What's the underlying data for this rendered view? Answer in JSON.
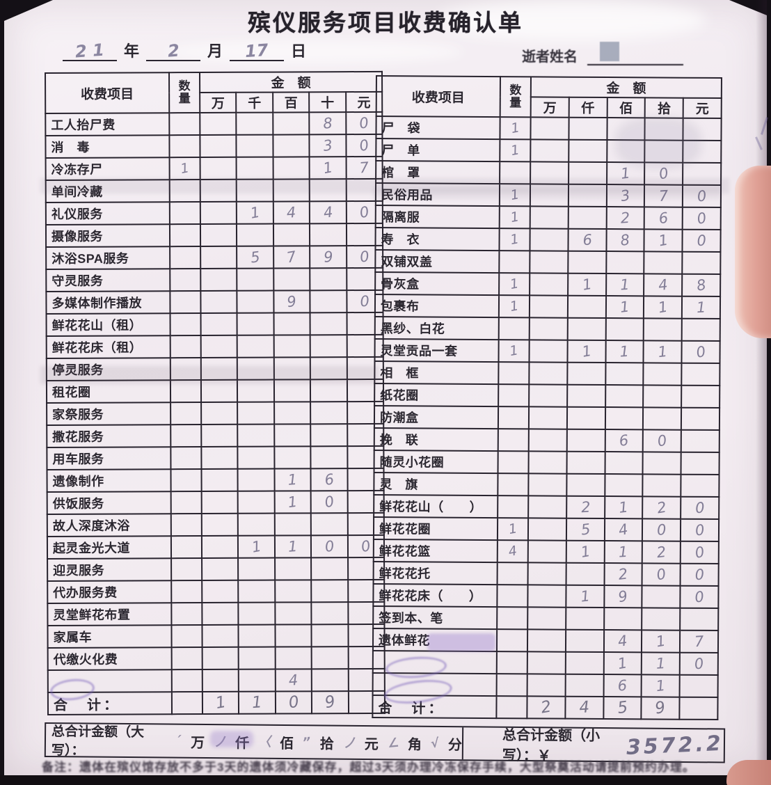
{
  "title": "殡仪服务项目收费确认单",
  "date_line": {
    "year_hw": "2 1",
    "year_label": "年",
    "month_hw": "2",
    "month_label": "月",
    "day_hw": "17",
    "day_label": "日"
  },
  "deceased_label": "逝者姓名",
  "left_table": {
    "header": {
      "item": "收费项目",
      "qty": "数量",
      "amount": "金　额",
      "units": [
        "万",
        "千",
        "百",
        "十",
        "元"
      ]
    },
    "rows": [
      {
        "item": "工人抬尸费",
        "qty": "",
        "a": [
          "",
          "",
          "",
          "8",
          "0"
        ]
      },
      {
        "item": "消　毒",
        "qty": "",
        "a": [
          "",
          "",
          "",
          "3",
          "0"
        ]
      },
      {
        "item": "冷冻存尸",
        "qty": "1",
        "a": [
          "",
          "",
          "",
          "1",
          "7"
        ]
      },
      {
        "item": "单间冷藏",
        "qty": "",
        "a": [
          "",
          "",
          "",
          "",
          ""
        ]
      },
      {
        "item": "礼仪服务",
        "qty": "",
        "a": [
          "",
          "1",
          "4",
          "4",
          "0"
        ]
      },
      {
        "item": "摄像服务",
        "qty": "",
        "a": [
          "",
          "",
          "",
          "",
          ""
        ]
      },
      {
        "item": "沐浴SPA服务",
        "qty": "",
        "a": [
          "",
          "5",
          "7",
          "9",
          "0"
        ]
      },
      {
        "item": "守灵服务",
        "qty": "",
        "a": [
          "",
          "",
          "",
          "",
          ""
        ]
      },
      {
        "item": "多媒体制作播放",
        "qty": "",
        "a": [
          "",
          "",
          "9",
          "",
          "0"
        ]
      },
      {
        "item": "鲜花花山（租）",
        "qty": "",
        "a": [
          "",
          "",
          "",
          "",
          ""
        ]
      },
      {
        "item": "鲜花花床（租）",
        "qty": "",
        "a": [
          "",
          "",
          "",
          "",
          ""
        ]
      },
      {
        "item": "停灵服务",
        "qty": "",
        "a": [
          "",
          "",
          "",
          "",
          ""
        ]
      },
      {
        "item": "租花圈",
        "qty": "",
        "a": [
          "",
          "",
          "",
          "",
          ""
        ]
      },
      {
        "item": "家祭服务",
        "qty": "",
        "a": [
          "",
          "",
          "",
          "",
          ""
        ]
      },
      {
        "item": "撒花服务",
        "qty": "",
        "a": [
          "",
          "",
          "",
          "",
          ""
        ]
      },
      {
        "item": "用车服务",
        "qty": "",
        "a": [
          "",
          "",
          "",
          "",
          ""
        ]
      },
      {
        "item": "遗像制作",
        "qty": "",
        "a": [
          "",
          "",
          "1",
          "6",
          ""
        ]
      },
      {
        "item": "供饭服务",
        "qty": "",
        "a": [
          "",
          "",
          "1",
          "0",
          ""
        ]
      },
      {
        "item": "故人深度沐浴",
        "qty": "",
        "a": [
          "",
          "",
          "",
          "",
          ""
        ]
      },
      {
        "item": "起灵金光大道",
        "qty": "",
        "a": [
          "",
          "1",
          "1",
          "0",
          "0"
        ]
      },
      {
        "item": "迎灵服务",
        "qty": "",
        "a": [
          "",
          "",
          "",
          "",
          ""
        ]
      },
      {
        "item": "代办服务费",
        "qty": "",
        "a": [
          "",
          "",
          "",
          "",
          ""
        ]
      },
      {
        "item": "灵堂鲜花布置",
        "qty": "",
        "a": [
          "",
          "",
          "",
          "",
          ""
        ]
      },
      {
        "item": "家属车",
        "qty": "",
        "a": [
          "",
          "",
          "",
          "",
          ""
        ]
      },
      {
        "item": "代缴火化费",
        "qty": "",
        "a": [
          "",
          "",
          "",
          "",
          ""
        ]
      },
      {
        "item": "",
        "qty": "",
        "a": [
          "",
          "",
          "4",
          "",
          ""
        ]
      },
      {
        "item": "合　计：",
        "qty": "",
        "a": [
          "1",
          "1",
          "0",
          "9",
          ""
        ],
        "total": true
      }
    ]
  },
  "right_table": {
    "header": {
      "item": "收费项目",
      "qty": "数量",
      "amount": "金　额",
      "units": [
        "万",
        "仟",
        "佰",
        "拾",
        "元"
      ]
    },
    "rows": [
      {
        "item": "尸　袋",
        "qty": "1",
        "a": [
          "",
          "",
          "",
          "",
          ""
        ]
      },
      {
        "item": "尸　单",
        "qty": "1",
        "a": [
          "",
          "",
          "",
          "",
          ""
        ]
      },
      {
        "item": "棺　罩",
        "qty": "",
        "a": [
          "",
          "",
          "1",
          "0",
          ""
        ]
      },
      {
        "item": "民俗用品",
        "qty": "1",
        "a": [
          "",
          "",
          "3",
          "7",
          "0"
        ]
      },
      {
        "item": "隔离服",
        "qty": "1",
        "a": [
          "",
          "",
          "2",
          "6",
          "0"
        ]
      },
      {
        "item": "寿　衣",
        "qty": "1",
        "a": [
          "",
          "6",
          "8",
          "1",
          "0"
        ]
      },
      {
        "item": "双铺双盖",
        "qty": "",
        "a": [
          "",
          "",
          "",
          "",
          ""
        ]
      },
      {
        "item": "骨灰盒",
        "qty": "1",
        "a": [
          "",
          "1",
          "1",
          "4",
          "8"
        ]
      },
      {
        "item": "包裹布",
        "qty": "1",
        "a": [
          "",
          "",
          "1",
          "1",
          "1"
        ]
      },
      {
        "item": "黑纱、白花",
        "qty": "",
        "a": [
          "",
          "",
          "",
          "",
          ""
        ]
      },
      {
        "item": "灵堂贡品一套",
        "qty": "1",
        "a": [
          "",
          "1",
          "1",
          "1",
          "0"
        ]
      },
      {
        "item": "相　框",
        "qty": "",
        "a": [
          "",
          "",
          "",
          "",
          ""
        ]
      },
      {
        "item": "纸花圈",
        "qty": "",
        "a": [
          "",
          "",
          "",
          "",
          ""
        ]
      },
      {
        "item": "防潮盒",
        "qty": "",
        "a": [
          "",
          "",
          "",
          "",
          ""
        ]
      },
      {
        "item": "挽　联",
        "qty": "",
        "a": [
          "",
          "",
          "6",
          "0",
          ""
        ]
      },
      {
        "item": "随灵小花圈",
        "qty": "",
        "a": [
          "",
          "",
          "",
          "",
          ""
        ]
      },
      {
        "item": "灵　旗",
        "qty": "",
        "a": [
          "",
          "",
          "",
          "",
          ""
        ]
      },
      {
        "item": "鲜花花山（　　）",
        "qty": "",
        "a": [
          "",
          "2",
          "1",
          "2",
          "0"
        ]
      },
      {
        "item": "鲜花花圈",
        "qty": "1",
        "a": [
          "",
          "5",
          "4",
          "0",
          "0"
        ]
      },
      {
        "item": "鲜花花篮",
        "qty": "4",
        "a": [
          "",
          "1",
          "1",
          "2",
          "0"
        ]
      },
      {
        "item": "鲜花花托",
        "qty": "",
        "a": [
          "",
          "",
          "2",
          "0",
          "0"
        ]
      },
      {
        "item": "鲜花花床（　　）",
        "qty": "",
        "a": [
          "",
          "1",
          "9",
          "",
          "0"
        ]
      },
      {
        "item": "签到本、笔",
        "qty": "",
        "a": [
          "",
          "",
          "",
          "",
          ""
        ]
      },
      {
        "item": "遗体鲜花",
        "qty": "",
        "a": [
          "",
          "",
          "4",
          "1",
          "7"
        ]
      },
      {
        "item": "",
        "qty": "",
        "a": [
          "",
          "",
          "1",
          "1",
          "0"
        ]
      },
      {
        "item": "",
        "qty": "",
        "a": [
          "",
          "",
          "6",
          "1",
          ""
        ]
      },
      {
        "item": "合　计：",
        "qty": "",
        "a": [
          "2",
          "4",
          "5",
          "9",
          ""
        ],
        "total": true
      }
    ]
  },
  "footer": {
    "upper_label": "总合计金额（大写）：",
    "upper_units": [
      "万",
      "仟",
      "佰",
      "拾",
      "元",
      "角",
      "分"
    ],
    "upper_marks": [
      "ˊ",
      "ノ",
      "〈",
      "ˮ",
      "ノ",
      "∠",
      "√"
    ],
    "lower_label": "总合计金额（小写）：￥",
    "lower_amount_hw": "3572.2"
  },
  "note": "备注：遗体在殡仪馆存放不多于3天的遗体须冷藏保存，超过3天须办理冷冻保存手续，大型祭奠活动请提前预约办理。",
  "colors": {
    "paper": "#f3edf2",
    "ink": "#28232e",
    "pen": "#6f6a86",
    "highlighter": "#b9a0d8",
    "finger": "#e0a196",
    "background": "#141016",
    "redact": "#9aa1b3"
  }
}
